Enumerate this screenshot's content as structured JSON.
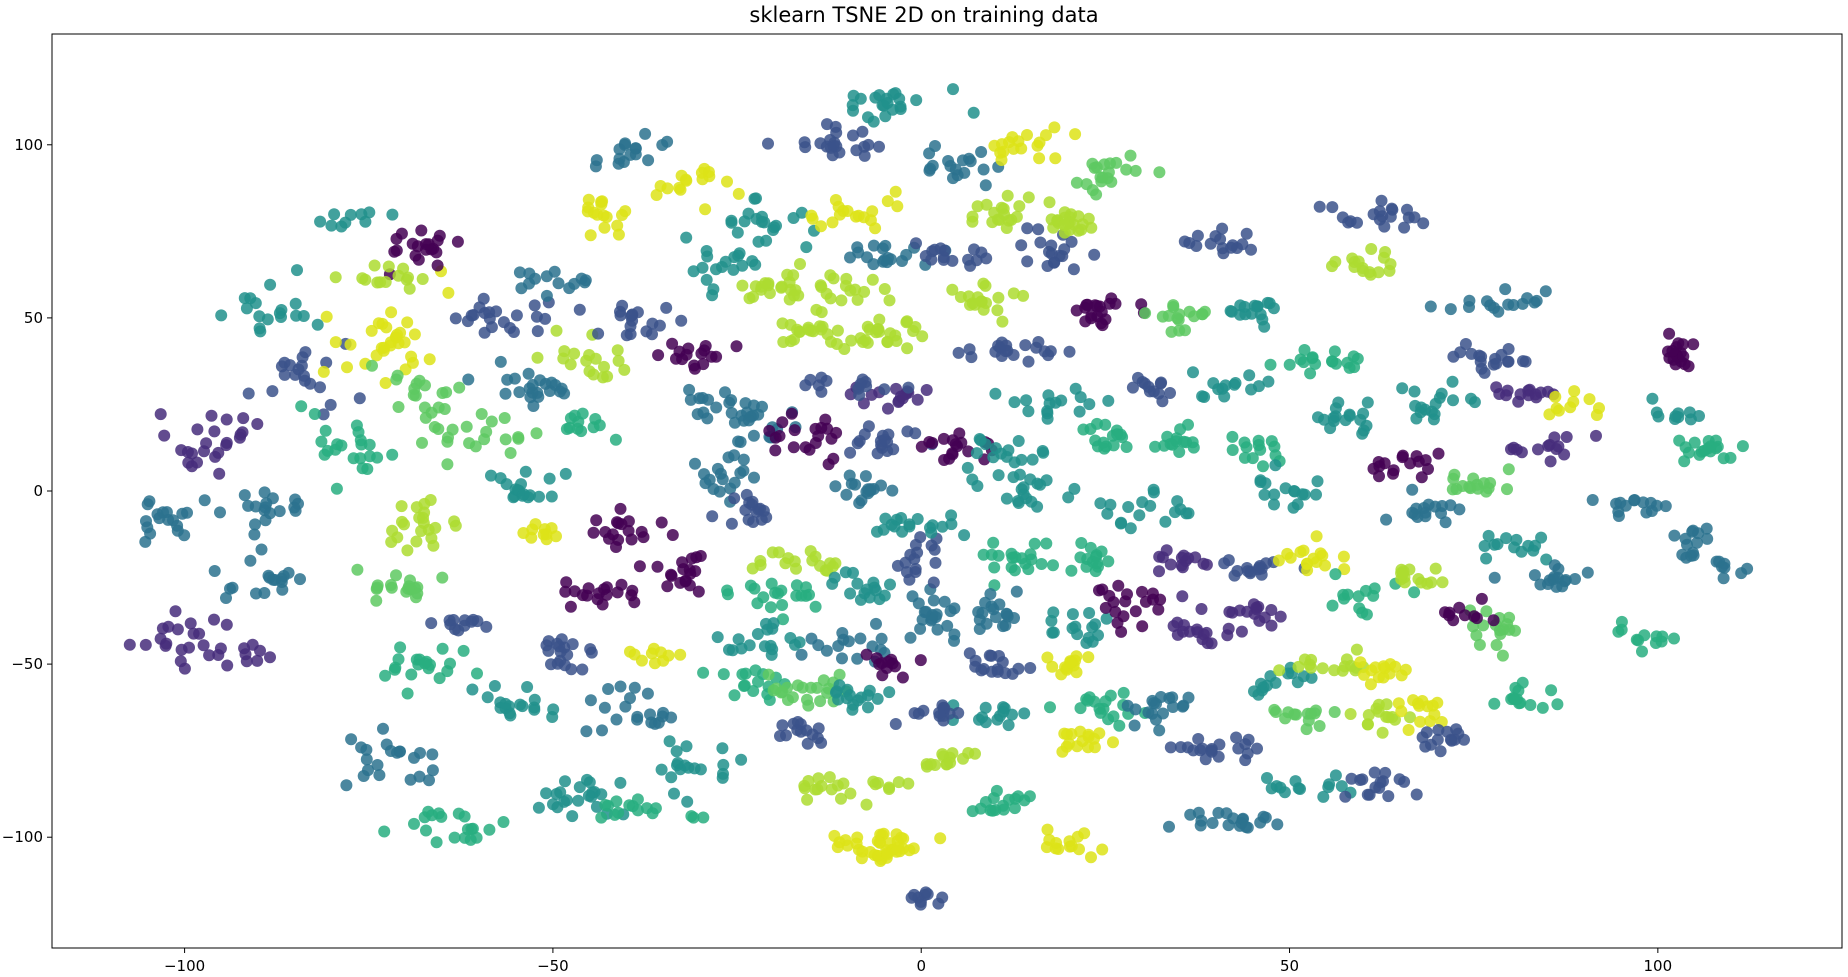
{
  "chart_data": {
    "type": "scatter",
    "title": "sklearn TSNE 2D on training data",
    "xlabel": "",
    "ylabel": "",
    "xlim": [
      -118,
      125
    ],
    "ylim": [
      -132,
      132
    ],
    "xticks": [
      -100,
      -50,
      0,
      50,
      100
    ],
    "yticks": [
      -100,
      -50,
      0,
      50,
      100
    ],
    "xtick_labels": [
      "−100",
      "−50",
      "0",
      "50",
      "100"
    ],
    "ytick_labels": [
      "−100",
      "−50",
      "0",
      "50",
      "100"
    ],
    "grid": false,
    "legend": "none",
    "colormap": "viridis",
    "marker_alpha": 0.85,
    "palette": [
      "#440154",
      "#472d7b",
      "#3b528b",
      "#2c728e",
      "#21918c",
      "#28ae80",
      "#5ec962",
      "#addc30",
      "#dde318"
    ],
    "clusters": [
      {
        "x": -97,
        "y": -45,
        "w": 14,
        "h": 8,
        "n": 30,
        "c": 1,
        "angle": -20
      },
      {
        "x": -90,
        "y": -27,
        "w": 7,
        "h": 6,
        "n": 18,
        "c": 3
      },
      {
        "x": -102,
        "y": -8,
        "w": 6,
        "h": 6,
        "n": 18,
        "c": 3
      },
      {
        "x": -87,
        "y": -5,
        "w": 7,
        "h": 8,
        "n": 18,
        "c": 3
      },
      {
        "x": -96,
        "y": 15,
        "w": 8,
        "h": 10,
        "n": 24,
        "c": 1
      },
      {
        "x": -83,
        "y": 32,
        "w": 8,
        "h": 10,
        "n": 20,
        "c": 2
      },
      {
        "x": -88,
        "y": 52,
        "w": 8,
        "h": 10,
        "n": 18,
        "c": 4
      },
      {
        "x": -72,
        "y": 44,
        "w": 8,
        "h": 14,
        "n": 32,
        "c": 8
      },
      {
        "x": -68,
        "y": 70,
        "w": 6,
        "h": 8,
        "n": 20,
        "c": 0
      },
      {
        "x": -77,
        "y": 12,
        "w": 7,
        "h": 10,
        "n": 22,
        "c": 5
      },
      {
        "x": -67,
        "y": 28,
        "w": 6,
        "h": 10,
        "n": 18,
        "c": 6
      },
      {
        "x": -68,
        "y": -10,
        "w": 5,
        "h": 8,
        "n": 22,
        "c": 7
      },
      {
        "x": -70,
        "y": -28,
        "w": 6,
        "h": 6,
        "n": 18,
        "c": 6
      },
      {
        "x": -68,
        "y": -50,
        "w": 7,
        "h": 10,
        "n": 20,
        "c": 5
      },
      {
        "x": -72,
        "y": -78,
        "w": 8,
        "h": 10,
        "n": 22,
        "c": 3
      },
      {
        "x": -63,
        "y": -97,
        "w": 7,
        "h": 7,
        "n": 20,
        "c": 5
      },
      {
        "x": -55,
        "y": -62,
        "w": 7,
        "h": 8,
        "n": 18,
        "c": 4
      },
      {
        "x": -47,
        "y": -88,
        "w": 7,
        "h": 8,
        "n": 22,
        "c": 4
      },
      {
        "x": -49,
        "y": -48,
        "w": 6,
        "h": 6,
        "n": 18,
        "c": 2
      },
      {
        "x": -45,
        "y": -30,
        "w": 8,
        "h": 5,
        "n": 18,
        "c": 0
      },
      {
        "x": -38,
        "y": -63,
        "w": 7,
        "h": 8,
        "n": 20,
        "c": 3
      },
      {
        "x": -36,
        "y": -48,
        "w": 4,
        "h": 4,
        "n": 10,
        "c": 8
      },
      {
        "x": -32,
        "y": -78,
        "w": 8,
        "h": 8,
        "n": 20,
        "c": 4
      },
      {
        "x": -38,
        "y": -92,
        "w": 7,
        "h": 5,
        "n": 16,
        "c": 5
      },
      {
        "x": -32,
        "y": -25,
        "w": 6,
        "h": 8,
        "n": 18,
        "c": 0
      },
      {
        "x": -40,
        "y": -10,
        "w": 6,
        "h": 6,
        "n": 18,
        "c": 0
      },
      {
        "x": -50,
        "y": -12,
        "w": 4,
        "h": 4,
        "n": 10,
        "c": 8
      },
      {
        "x": -55,
        "y": 2,
        "w": 7,
        "h": 6,
        "n": 18,
        "c": 4
      },
      {
        "x": -60,
        "y": 15,
        "w": 8,
        "h": 8,
        "n": 20,
        "c": 6
      },
      {
        "x": -52,
        "y": 30,
        "w": 9,
        "h": 8,
        "n": 22,
        "c": 3
      },
      {
        "x": -58,
        "y": 50,
        "w": 9,
        "h": 6,
        "n": 22,
        "c": 2
      },
      {
        "x": -50,
        "y": 60,
        "w": 7,
        "h": 4,
        "n": 14,
        "c": 3
      },
      {
        "x": -45,
        "y": 38,
        "w": 6,
        "h": 6,
        "n": 18,
        "c": 7
      },
      {
        "x": -38,
        "y": 48,
        "w": 6,
        "h": 6,
        "n": 18,
        "c": 2
      },
      {
        "x": -43,
        "y": 80,
        "w": 6,
        "h": 6,
        "n": 16,
        "c": 8
      },
      {
        "x": -38,
        "y": 98,
        "w": 6,
        "h": 5,
        "n": 16,
        "c": 3
      },
      {
        "x": -30,
        "y": 88,
        "w": 6,
        "h": 6,
        "n": 16,
        "c": 8
      },
      {
        "x": -28,
        "y": 65,
        "w": 6,
        "h": 8,
        "n": 18,
        "c": 4
      },
      {
        "x": -22,
        "y": 78,
        "w": 7,
        "h": 8,
        "n": 20,
        "c": 4
      },
      {
        "x": -30,
        "y": 40,
        "w": 7,
        "h": 6,
        "n": 16,
        "c": 0
      },
      {
        "x": -28,
        "y": 25,
        "w": 6,
        "h": 6,
        "n": 16,
        "c": 3
      },
      {
        "x": -20,
        "y": 58,
        "w": 6,
        "h": 6,
        "n": 18,
        "c": 7
      },
      {
        "x": -15,
        "y": 45,
        "w": 7,
        "h": 6,
        "n": 22,
        "c": 7
      },
      {
        "x": -22,
        "y": 18,
        "w": 6,
        "h": 8,
        "n": 18,
        "c": 3
      },
      {
        "x": -28,
        "y": 5,
        "w": 6,
        "h": 8,
        "n": 18,
        "c": 3
      },
      {
        "x": -24,
        "y": -5,
        "w": 5,
        "h": 8,
        "n": 16,
        "c": 2
      },
      {
        "x": -15,
        "y": 15,
        "w": 6,
        "h": 8,
        "n": 20,
        "c": 0
      },
      {
        "x": -20,
        "y": -30,
        "w": 8,
        "h": 6,
        "n": 20,
        "c": 5
      },
      {
        "x": -15,
        "y": -20,
        "w": 8,
        "h": 4,
        "n": 18,
        "c": 7
      },
      {
        "x": -22,
        "y": -45,
        "w": 7,
        "h": 6,
        "n": 18,
        "c": 4
      },
      {
        "x": -25,
        "y": -55,
        "w": 7,
        "h": 5,
        "n": 16,
        "c": 5
      },
      {
        "x": -15,
        "y": -58,
        "w": 7,
        "h": 6,
        "n": 22,
        "c": 6
      },
      {
        "x": -10,
        "y": -45,
        "w": 6,
        "h": 5,
        "n": 16,
        "c": 3
      },
      {
        "x": -15,
        "y": -70,
        "w": 6,
        "h": 5,
        "n": 14,
        "c": 2
      },
      {
        "x": -10,
        "y": -85,
        "w": 10,
        "h": 4,
        "n": 22,
        "c": 7
      },
      {
        "x": -10,
        "y": -102,
        "w": 4,
        "h": 3,
        "n": 10,
        "c": 8
      },
      {
        "x": -4,
        "y": -103,
        "w": 4,
        "h": 5,
        "n": 30,
        "c": 8
      },
      {
        "x": 3,
        "y": -78,
        "w": 5,
        "h": 4,
        "n": 14,
        "c": 7
      },
      {
        "x": 0,
        "y": -118,
        "w": 3,
        "h": 3,
        "n": 10,
        "c": 2
      },
      {
        "x": -8,
        "y": -60,
        "w": 5,
        "h": 5,
        "n": 16,
        "c": 4
      },
      {
        "x": -5,
        "y": -50,
        "w": 4,
        "h": 4,
        "n": 12,
        "c": 0
      },
      {
        "x": 0,
        "y": -38,
        "w": 7,
        "h": 8,
        "n": 22,
        "c": 3
      },
      {
        "x": 0,
        "y": -20,
        "w": 4,
        "h": 8,
        "n": 16,
        "c": 2
      },
      {
        "x": -8,
        "y": -28,
        "w": 6,
        "h": 5,
        "n": 16,
        "c": 4
      },
      {
        "x": 0,
        "y": -10,
        "w": 7,
        "h": 4,
        "n": 18,
        "c": 4
      },
      {
        "x": -8,
        "y": 0,
        "w": 6,
        "h": 5,
        "n": 16,
        "c": 3
      },
      {
        "x": -5,
        "y": 15,
        "w": 6,
        "h": 6,
        "n": 18,
        "c": 2
      },
      {
        "x": 5,
        "y": 12,
        "w": 6,
        "h": 6,
        "n": 18,
        "c": 0
      },
      {
        "x": -3,
        "y": 28,
        "w": 6,
        "h": 4,
        "n": 16,
        "c": 1
      },
      {
        "x": -10,
        "y": 30,
        "w": 6,
        "h": 4,
        "n": 14,
        "c": 2
      },
      {
        "x": -5,
        "y": 45,
        "w": 7,
        "h": 6,
        "n": 22,
        "c": 7
      },
      {
        "x": -12,
        "y": 58,
        "w": 7,
        "h": 6,
        "n": 20,
        "c": 7
      },
      {
        "x": -5,
        "y": 68,
        "w": 7,
        "h": 5,
        "n": 18,
        "c": 3
      },
      {
        "x": -10,
        "y": 80,
        "w": 7,
        "h": 6,
        "n": 18,
        "c": 8
      },
      {
        "x": -12,
        "y": 100,
        "w": 8,
        "h": 6,
        "n": 22,
        "c": 2
      },
      {
        "x": -5,
        "y": 112,
        "w": 8,
        "h": 6,
        "n": 22,
        "c": 4
      },
      {
        "x": 5,
        "y": 95,
        "w": 6,
        "h": 6,
        "n": 18,
        "c": 3
      },
      {
        "x": 10,
        "y": 80,
        "w": 6,
        "h": 6,
        "n": 18,
        "c": 7
      },
      {
        "x": 5,
        "y": 68,
        "w": 6,
        "h": 4,
        "n": 16,
        "c": 2
      },
      {
        "x": 8,
        "y": 55,
        "w": 6,
        "h": 6,
        "n": 18,
        "c": 7
      },
      {
        "x": 12,
        "y": 40,
        "w": 8,
        "h": 5,
        "n": 20,
        "c": 2
      },
      {
        "x": 18,
        "y": 25,
        "w": 6,
        "h": 5,
        "n": 16,
        "c": 4
      },
      {
        "x": 10,
        "y": 10,
        "w": 6,
        "h": 8,
        "n": 18,
        "c": 4
      },
      {
        "x": 15,
        "y": 0,
        "w": 6,
        "h": 6,
        "n": 18,
        "c": 4
      },
      {
        "x": 12,
        "y": -20,
        "w": 6,
        "h": 6,
        "n": 18,
        "c": 5
      },
      {
        "x": 10,
        "y": -35,
        "w": 6,
        "h": 6,
        "n": 18,
        "c": 3
      },
      {
        "x": 10,
        "y": -50,
        "w": 6,
        "h": 5,
        "n": 16,
        "c": 2
      },
      {
        "x": 10,
        "y": -65,
        "w": 6,
        "h": 4,
        "n": 14,
        "c": 4
      },
      {
        "x": 12,
        "y": -90,
        "w": 5,
        "h": 4,
        "n": 16,
        "c": 5
      },
      {
        "x": 20,
        "y": -102,
        "w": 4,
        "h": 4,
        "n": 14,
        "c": 8
      },
      {
        "x": 22,
        "y": -72,
        "w": 5,
        "h": 4,
        "n": 16,
        "c": 8
      },
      {
        "x": 20,
        "y": -50,
        "w": 5,
        "h": 4,
        "n": 14,
        "c": 8
      },
      {
        "x": 25,
        "y": -62,
        "w": 6,
        "h": 5,
        "n": 18,
        "c": 5
      },
      {
        "x": 22,
        "y": -40,
        "w": 6,
        "h": 5,
        "n": 16,
        "c": 4
      },
      {
        "x": 28,
        "y": -32,
        "w": 5,
        "h": 8,
        "n": 20,
        "c": 0
      },
      {
        "x": 22,
        "y": -20,
        "w": 6,
        "h": 5,
        "n": 16,
        "c": 5
      },
      {
        "x": 30,
        "y": -5,
        "w": 7,
        "h": 6,
        "n": 18,
        "c": 4
      },
      {
        "x": 25,
        "y": 15,
        "w": 6,
        "h": 6,
        "n": 16,
        "c": 5
      },
      {
        "x": 25,
        "y": 52,
        "w": 7,
        "h": 6,
        "n": 20,
        "c": 0
      },
      {
        "x": 18,
        "y": 70,
        "w": 6,
        "h": 6,
        "n": 18,
        "c": 2
      },
      {
        "x": 20,
        "y": 77,
        "w": 4,
        "h": 5,
        "n": 22,
        "c": 7
      },
      {
        "x": 25,
        "y": 92,
        "w": 7,
        "h": 6,
        "n": 20,
        "c": 6
      },
      {
        "x": 15,
        "y": 100,
        "w": 7,
        "h": 6,
        "n": 18,
        "c": 8
      },
      {
        "x": 35,
        "y": 15,
        "w": 5,
        "h": 4,
        "n": 14,
        "c": 5
      },
      {
        "x": 32,
        "y": 30,
        "w": 4,
        "h": 4,
        "n": 12,
        "c": 2
      },
      {
        "x": 35,
        "y": -20,
        "w": 6,
        "h": 4,
        "n": 14,
        "c": 1
      },
      {
        "x": 38,
        "y": -40,
        "w": 6,
        "h": 5,
        "n": 16,
        "c": 1
      },
      {
        "x": 32,
        "y": -63,
        "w": 6,
        "h": 6,
        "n": 18,
        "c": 3
      },
      {
        "x": 40,
        "y": -75,
        "w": 7,
        "h": 4,
        "n": 20,
        "c": 2
      },
      {
        "x": 42,
        "y": -95,
        "w": 8,
        "h": 4,
        "n": 20,
        "c": 3
      },
      {
        "x": 35,
        "y": 50,
        "w": 6,
        "h": 6,
        "n": 16,
        "c": 6
      },
      {
        "x": 40,
        "y": 72,
        "w": 7,
        "h": 3,
        "n": 16,
        "c": 2
      },
      {
        "x": 45,
        "y": 52,
        "w": 6,
        "h": 6,
        "n": 16,
        "c": 4
      },
      {
        "x": 42,
        "y": 30,
        "w": 5,
        "h": 5,
        "n": 14,
        "c": 4
      },
      {
        "x": 45,
        "y": 12,
        "w": 5,
        "h": 5,
        "n": 14,
        "c": 5
      },
      {
        "x": 45,
        "y": -22,
        "w": 6,
        "h": 3,
        "n": 16,
        "c": 2
      },
      {
        "x": 45,
        "y": -35,
        "w": 6,
        "h": 4,
        "n": 16,
        "c": 1
      },
      {
        "x": 48,
        "y": -55,
        "w": 5,
        "h": 5,
        "n": 14,
        "c": 4
      },
      {
        "x": 52,
        "y": -65,
        "w": 5,
        "h": 4,
        "n": 14,
        "c": 6
      },
      {
        "x": 55,
        "y": -50,
        "w": 6,
        "h": 4,
        "n": 16,
        "c": 7
      },
      {
        "x": 52,
        "y": -85,
        "w": 6,
        "h": 4,
        "n": 14,
        "c": 4
      },
      {
        "x": 52,
        "y": -20,
        "w": 6,
        "h": 6,
        "n": 16,
        "c": 8
      },
      {
        "x": 50,
        "y": 0,
        "w": 6,
        "h": 6,
        "n": 16,
        "c": 4
      },
      {
        "x": 58,
        "y": 20,
        "w": 6,
        "h": 6,
        "n": 16,
        "c": 4
      },
      {
        "x": 55,
        "y": 38,
        "w": 7,
        "h": 4,
        "n": 18,
        "c": 5
      },
      {
        "x": 60,
        "y": 65,
        "w": 6,
        "h": 4,
        "n": 16,
        "c": 7
      },
      {
        "x": 62,
        "y": 80,
        "w": 8,
        "h": 4,
        "n": 20,
        "c": 2
      },
      {
        "x": 60,
        "y": -30,
        "w": 6,
        "h": 5,
        "n": 14,
        "c": 5
      },
      {
        "x": 62,
        "y": -65,
        "w": 5,
        "h": 5,
        "n": 14,
        "c": 7
      },
      {
        "x": 63,
        "y": -52,
        "w": 4,
        "h": 4,
        "n": 14,
        "c": 8
      },
      {
        "x": 62,
        "y": -85,
        "w": 5,
        "h": 5,
        "n": 16,
        "c": 2
      },
      {
        "x": 65,
        "y": 10,
        "w": 6,
        "h": 6,
        "n": 16,
        "c": 0
      },
      {
        "x": 68,
        "y": 25,
        "w": 7,
        "h": 6,
        "n": 18,
        "c": 4
      },
      {
        "x": 68,
        "y": -5,
        "w": 7,
        "h": 5,
        "n": 16,
        "c": 3
      },
      {
        "x": 68,
        "y": -25,
        "w": 5,
        "h": 5,
        "n": 14,
        "c": 7
      },
      {
        "x": 68,
        "y": -63,
        "w": 5,
        "h": 4,
        "n": 14,
        "c": 8
      },
      {
        "x": 72,
        "y": -72,
        "w": 5,
        "h": 4,
        "n": 14,
        "c": 2
      },
      {
        "x": 75,
        "y": 2,
        "w": 6,
        "h": 4,
        "n": 16,
        "c": 6
      },
      {
        "x": 80,
        "y": -15,
        "w": 6,
        "h": 5,
        "n": 14,
        "c": 4
      },
      {
        "x": 78,
        "y": -40,
        "w": 5,
        "h": 8,
        "n": 18,
        "c": 6
      },
      {
        "x": 75,
        "y": -35,
        "w": 4,
        "h": 4,
        "n": 10,
        "c": 0
      },
      {
        "x": 82,
        "y": -60,
        "w": 5,
        "h": 5,
        "n": 14,
        "c": 5
      },
      {
        "x": 78,
        "y": 38,
        "w": 7,
        "h": 4,
        "n": 18,
        "c": 2
      },
      {
        "x": 78,
        "y": 55,
        "w": 7,
        "h": 5,
        "n": 16,
        "c": 3
      },
      {
        "x": 82,
        "y": 28,
        "w": 6,
        "h": 4,
        "n": 14,
        "c": 1
      },
      {
        "x": 85,
        "y": 12,
        "w": 6,
        "h": 4,
        "n": 14,
        "c": 1
      },
      {
        "x": 85,
        "y": -25,
        "w": 6,
        "h": 4,
        "n": 16,
        "c": 3
      },
      {
        "x": 88,
        "y": 25,
        "w": 4,
        "h": 4,
        "n": 10,
        "c": 8
      },
      {
        "x": 97,
        "y": -5,
        "w": 5,
        "h": 3,
        "n": 14,
        "c": 3
      },
      {
        "x": 105,
        "y": -15,
        "w": 4,
        "h": 6,
        "n": 14,
        "c": 3
      },
      {
        "x": 110,
        "y": -22,
        "w": 3,
        "h": 3,
        "n": 8,
        "c": 3
      },
      {
        "x": 103,
        "y": 40,
        "w": 2,
        "h": 7,
        "n": 18,
        "c": 0
      },
      {
        "x": 107,
        "y": 12,
        "w": 6,
        "h": 4,
        "n": 18,
        "c": 5
      },
      {
        "x": 103,
        "y": 22,
        "w": 4,
        "h": 4,
        "n": 10,
        "c": 4
      },
      {
        "x": 98,
        "y": -42,
        "w": 4,
        "h": 4,
        "n": 12,
        "c": 5
      },
      {
        "x": -72,
        "y": 62,
        "w": 6,
        "h": 4,
        "n": 14,
        "c": 7
      },
      {
        "x": -78,
        "y": 78,
        "w": 5,
        "h": 3,
        "n": 10,
        "c": 4
      },
      {
        "x": -62,
        "y": -38,
        "w": 5,
        "h": 4,
        "n": 12,
        "c": 2
      },
      {
        "x": -45,
        "y": 18,
        "w": 5,
        "h": 4,
        "n": 12,
        "c": 5
      },
      {
        "x": 2,
        "y": -65,
        "w": 5,
        "h": 4,
        "n": 14,
        "c": 2
      }
    ]
  }
}
